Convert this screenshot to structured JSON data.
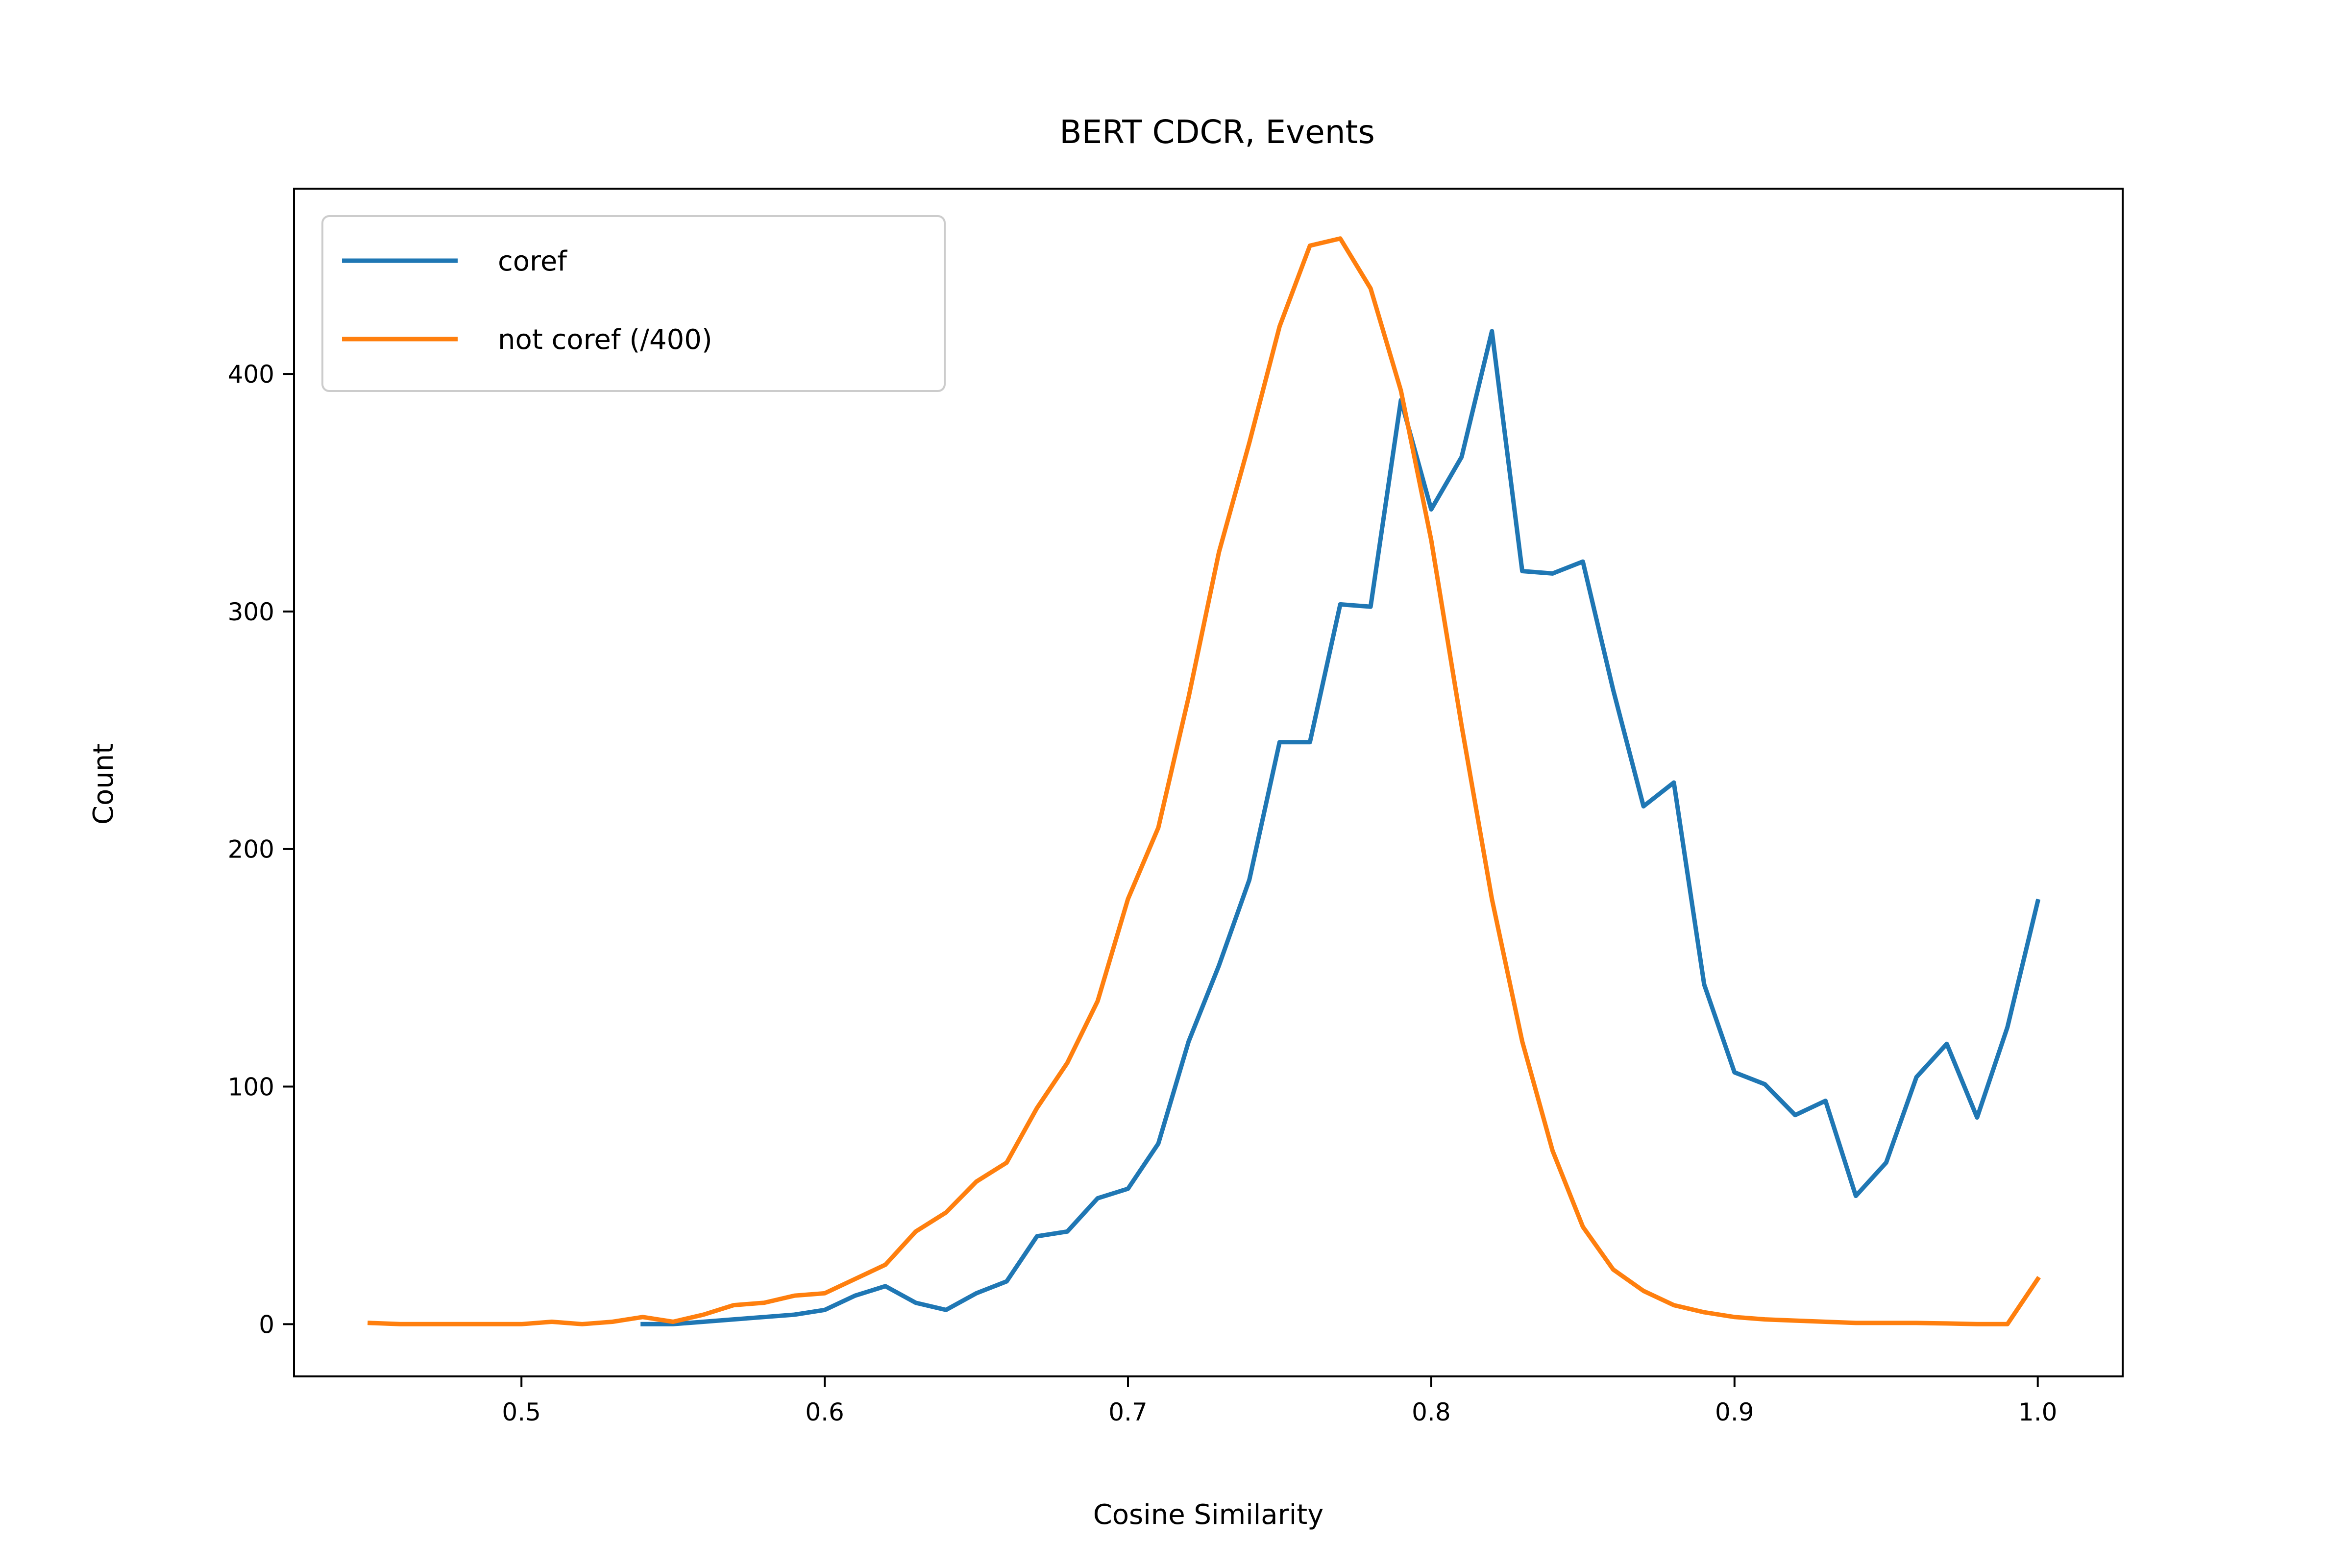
{
  "chart_data": {
    "type": "line",
    "title": "BERT CDCR, Events",
    "xlabel": "Cosine Similarity",
    "ylabel": "Count",
    "xlim": [
      0.425,
      1.028
    ],
    "ylim": [
      -22,
      478
    ],
    "xticks": [
      0.5,
      0.6,
      0.7,
      0.8,
      0.9,
      1.0
    ],
    "xtick_labels": [
      "0.5",
      "0.6",
      "0.7",
      "0.8",
      "0.9",
      "1.0"
    ],
    "yticks": [
      0,
      100,
      200,
      300,
      400
    ],
    "ytick_labels": [
      "0",
      "100",
      "200",
      "300",
      "400"
    ],
    "grid": false,
    "legend_position": "upper-left",
    "series": [
      {
        "name": "coref",
        "color": "#1f77b4",
        "x": [
          0.54,
          0.55,
          0.56,
          0.57,
          0.58,
          0.59,
          0.6,
          0.61,
          0.62,
          0.63,
          0.64,
          0.65,
          0.66,
          0.67,
          0.68,
          0.69,
          0.7,
          0.71,
          0.72,
          0.73,
          0.74,
          0.75,
          0.76,
          0.77,
          0.78,
          0.79,
          0.8,
          0.81,
          0.82,
          0.83,
          0.84,
          0.85,
          0.86,
          0.87,
          0.88,
          0.89,
          0.9,
          0.91,
          0.92,
          0.93,
          0.94,
          0.95,
          0.96,
          0.97,
          0.98,
          0.99,
          1.0
        ],
        "y": [
          0,
          0,
          1,
          2,
          3,
          4,
          6,
          12,
          16,
          9,
          6,
          13,
          18,
          37,
          39,
          53,
          57,
          76,
          119,
          151,
          187,
          245,
          245,
          303,
          302,
          389,
          343,
          365,
          418,
          317,
          316,
          321,
          267,
          218,
          228,
          143,
          106,
          101,
          88,
          94,
          54,
          68,
          104,
          118,
          87,
          125,
          178
        ]
      },
      {
        "name": "not coref (/400)",
        "color": "#ff7f0e",
        "x": [
          0.45,
          0.46,
          0.47,
          0.48,
          0.49,
          0.5,
          0.51,
          0.52,
          0.53,
          0.54,
          0.55,
          0.56,
          0.57,
          0.58,
          0.59,
          0.6,
          0.61,
          0.62,
          0.63,
          0.64,
          0.65,
          0.66,
          0.67,
          0.68,
          0.69,
          0.7,
          0.71,
          0.72,
          0.73,
          0.74,
          0.75,
          0.76,
          0.77,
          0.78,
          0.79,
          0.8,
          0.81,
          0.82,
          0.83,
          0.84,
          0.85,
          0.86,
          0.87,
          0.88,
          0.89,
          0.9,
          0.91,
          0.92,
          0.93,
          0.94,
          0.95,
          0.96,
          0.97,
          0.98,
          0.99,
          1.0
        ],
        "y": [
          0.5,
          0,
          0,
          0,
          0,
          0,
          1,
          0,
          1,
          3,
          1,
          4,
          8,
          9,
          12,
          13,
          19,
          25,
          39,
          47,
          60,
          68,
          91,
          110,
          136,
          179,
          209,
          264,
          325,
          371,
          420,
          454,
          457,
          436,
          393,
          330,
          252,
          179,
          119,
          73,
          41,
          23,
          14,
          8,
          5,
          3,
          2,
          1.5,
          1,
          0.5,
          0.5,
          0.5,
          0.3,
          0,
          0,
          19
        ]
      }
    ]
  }
}
